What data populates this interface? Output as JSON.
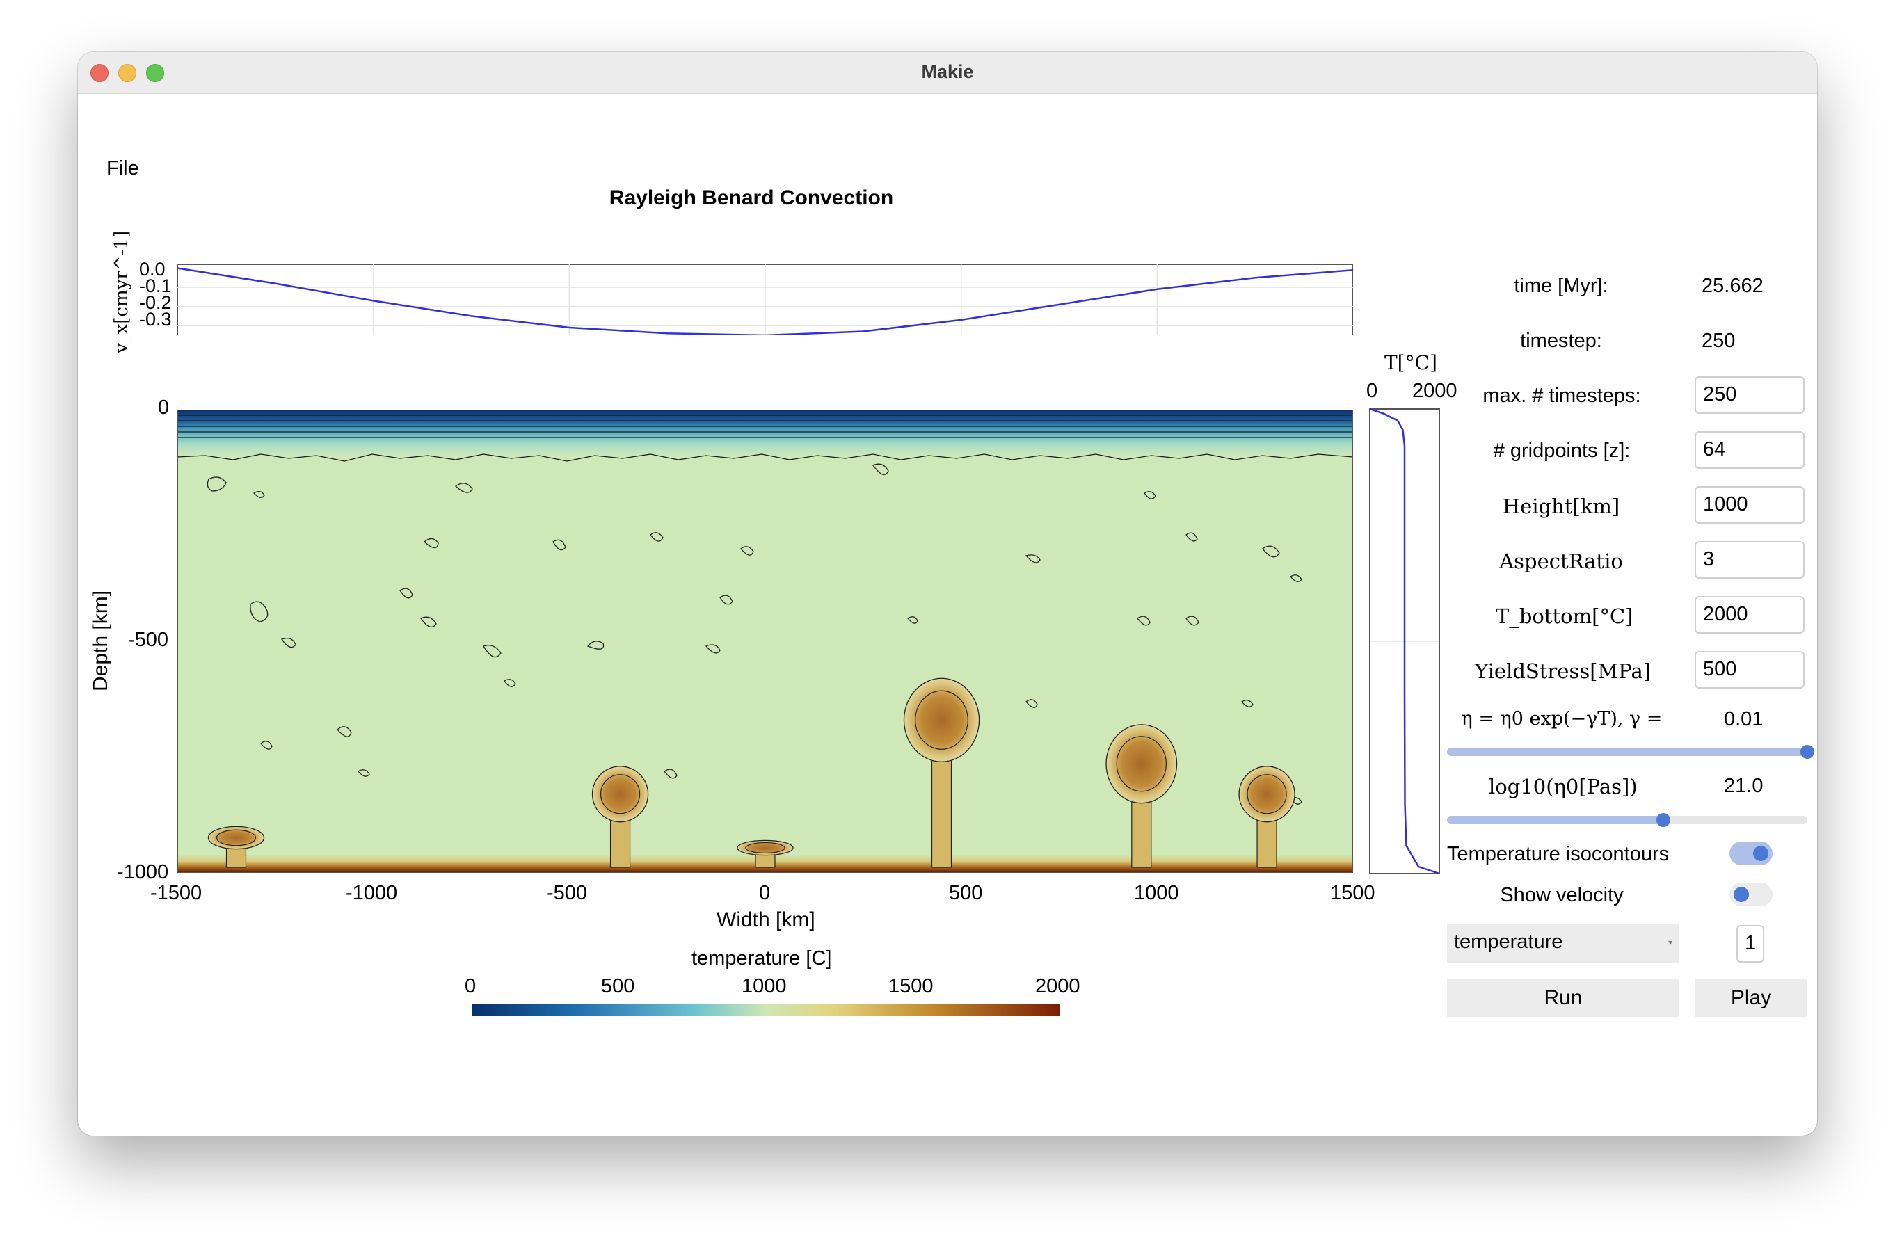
{
  "window": {
    "title": "Makie"
  },
  "menu": {
    "file": "File"
  },
  "plot": {
    "title": "Rayleigh Benard Convection",
    "velocity_ylabel": "v_x[cmyr^-1]",
    "velocity_yticks": [
      "0.0",
      "-0.1",
      "-0.2",
      "-0.3"
    ],
    "depth_label": "Depth [km]",
    "depth_ticks": [
      "0",
      "-500",
      "-1000"
    ],
    "width_label": "Width [km]",
    "width_ticks": [
      "-1500",
      "-1000",
      "-500",
      "0",
      "500",
      "1000",
      "1500"
    ],
    "profile_label": "T[°C]",
    "profile_ticks": [
      "0",
      "2000"
    ],
    "colorbar_label": "temperature [C]",
    "colorbar_ticks": [
      "0",
      "500",
      "1000",
      "1500",
      "2000"
    ]
  },
  "chart_data": [
    {
      "type": "line",
      "title": "Rayleigh Benard Convection",
      "ylabel": "v_x[cmyr^-1]",
      "xlim": [
        -1500,
        1500
      ],
      "ylim": [
        -0.35,
        0.02
      ],
      "grid": true,
      "x": [
        -1500,
        -1250,
        -1000,
        -750,
        -500,
        -250,
        0,
        250,
        500,
        750,
        1000,
        1250,
        1500
      ],
      "series": [
        {
          "values": [
            0.0,
            -0.08,
            -0.17,
            -0.25,
            -0.31,
            -0.34,
            -0.35,
            -0.33,
            -0.27,
            -0.19,
            -0.11,
            -0.05,
            -0.01
          ]
        }
      ],
      "color": "#3030e0"
    },
    {
      "type": "heatmap",
      "xlabel": "Width [km]",
      "ylabel": "Depth [km]",
      "xlim": [
        -1500,
        1500
      ],
      "ylim": [
        -1000,
        0
      ],
      "plumes": [
        {
          "x": -1350,
          "top_depth": -900
        },
        {
          "x": -370,
          "top_depth": -770
        },
        {
          "x": 0,
          "top_depth": -930
        },
        {
          "x": 450,
          "top_depth": -580
        },
        {
          "x": 960,
          "top_depth": -680
        },
        {
          "x": 1280,
          "top_depth": -770
        }
      ],
      "colorbar": {
        "label": "temperature [C]",
        "range": [
          0,
          2000
        ],
        "colors": [
          "#08306b",
          "#1f78b4",
          "#7fd3cf",
          "#cfe5b4",
          "#e0cf7a",
          "#c08a2c",
          "#7a1d06"
        ]
      }
    },
    {
      "type": "line",
      "xlabel": "T[°C]",
      "xlim": [
        0,
        2000
      ],
      "ylim": [
        -1000,
        0
      ],
      "x": [
        0,
        400,
        800,
        950,
        1000,
        1000,
        1000,
        1010,
        1050,
        1400,
        2000
      ],
      "y": [
        0,
        -10,
        -25,
        -45,
        -80,
        -300,
        -600,
        -850,
        -940,
        -985,
        -1000
      ],
      "color": "#3030e0"
    }
  ],
  "controls": {
    "time_label": "time [Myr]:",
    "time_value": "25.662",
    "timestep_label": "timestep:",
    "timestep_value": "250",
    "max_timesteps_label": "max. # timesteps:",
    "max_timesteps_value": "250",
    "gridpoints_label": "# gridpoints [z]:",
    "gridpoints_value": "64",
    "height_label": "Height[km]",
    "height_value": "1000",
    "aspect_label": "AspectRatio",
    "aspect_value": "3",
    "tbottom_label": "T_bottom[°C]",
    "tbottom_value": "2000",
    "yield_label": "YieldStress[MPa]",
    "yield_value": "500",
    "eta_label": "η = η0 exp(−γT), γ =",
    "eta_value": "0.01",
    "eta_slider": 1.0,
    "log_label": "log10(η0[Pas])",
    "log_value": "21.0",
    "log_slider": 0.6,
    "isocontours_label": "Temperature isocontours",
    "isocontours_on": true,
    "velocity_label": "Show velocity",
    "velocity_on": false,
    "field_menu": "temperature",
    "step_value": "1",
    "run_label": "Run",
    "play_label": "Play"
  }
}
